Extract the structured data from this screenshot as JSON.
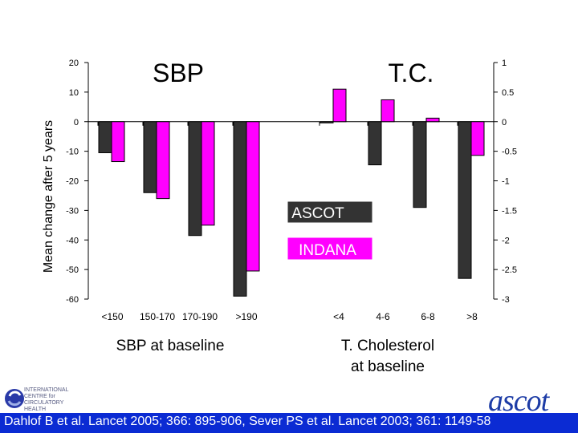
{
  "chart_data": {
    "type": "bar",
    "ylabel": "Mean change after 5 years",
    "colors": {
      "ascot": "#333333",
      "indana": "#ff00ff"
    },
    "left_axis": {
      "min": -60,
      "max": 20,
      "ticks": [
        "20",
        "10",
        "0",
        "-10",
        "-20",
        "-30",
        "-40",
        "-50",
        "-60"
      ]
    },
    "right_axis": {
      "min": -3,
      "max": 1,
      "ticks": [
        "1",
        "0.5",
        "0",
        "-0.5",
        "-1",
        "-1.5",
        "-2",
        "-2.5",
        "-3"
      ]
    },
    "panels": [
      {
        "title": "SBP",
        "xlabel": "SBP at baseline",
        "axis": "left",
        "categories": [
          "<150",
          "150-170",
          "170-190",
          ">190"
        ],
        "series": [
          {
            "name": "ASCOT",
            "values": [
              -10.5,
              -24,
              -38.5,
              -59
            ]
          },
          {
            "name": "INDANA",
            "values": [
              -13.5,
              -26,
              -35,
              -50.5
            ]
          }
        ]
      },
      {
        "title": "T.C.",
        "xlabel": "T. Cholesterol at baseline",
        "axis": "right",
        "categories": [
          "<4",
          "4-6",
          "6-8",
          ">8"
        ],
        "series": [
          {
            "name": "ASCOT",
            "values": [
              -0.02,
              -0.73,
              -1.45,
              -2.65
            ]
          },
          {
            "name": "INDANA",
            "values": [
              0.55,
              0.37,
              0.06,
              -0.57
            ]
          }
        ]
      }
    ],
    "legend": [
      {
        "label": "ASCOT"
      },
      {
        "label": "INDANA"
      }
    ]
  },
  "footer": {
    "citation": "Dahlof B et al. Lancet 2005; 366: 895-906, Sever PS et al. Lancet 2003; 361: 1149-58",
    "icc_logo_lines": [
      "INTERNATIONAL",
      "CENTRE for",
      "CIRCULATORY",
      "HEALTH"
    ],
    "ascot_logo": "ascot"
  }
}
